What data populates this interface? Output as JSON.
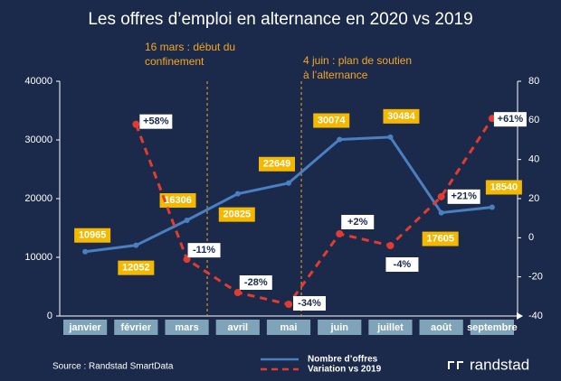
{
  "chart_data": {
    "type": "line",
    "title": "Les offres d’emploi en alternance en 2020 vs 2019",
    "categories": [
      "janvier",
      "février",
      "mars",
      "avril",
      "mai",
      "juin",
      "juillet",
      "août",
      "septembre"
    ],
    "series": [
      {
        "name": "Nombre d’offres",
        "color": "#4a7fc1",
        "values": [
          10965,
          12052,
          16306,
          20825,
          22649,
          30074,
          30484,
          17605,
          18540
        ]
      },
      {
        "name": "Variation vs 2019",
        "color": "#e03c31",
        "axis": "y2",
        "dashed": true,
        "values": [
          null,
          58,
          -11,
          -28,
          -34,
          2,
          -4,
          21,
          61
        ],
        "value_labels": [
          null,
          "+58%",
          "-11%",
          "-28%",
          "-34%",
          "+2%",
          "-4%",
          "+21%",
          "+61%"
        ]
      }
    ],
    "ylim": [
      0,
      40000
    ],
    "yticks": [
      0,
      10000,
      20000,
      30000,
      40000
    ],
    "y2lim": [
      -40,
      80
    ],
    "y2ticks": [
      -40,
      -20,
      0,
      20,
      40,
      60,
      80
    ],
    "annotations": [
      {
        "lines": [
          "16 mars : début du",
          "confinement"
        ],
        "color": "#f5a623",
        "position": 2.4
      },
      {
        "lines": [
          "4 juin : plan de soutien",
          "à l’alternance"
        ],
        "color": "#f5a623",
        "position": 4.25
      }
    ],
    "source": "Source : Randstad SmartData",
    "logo": "randstad"
  }
}
